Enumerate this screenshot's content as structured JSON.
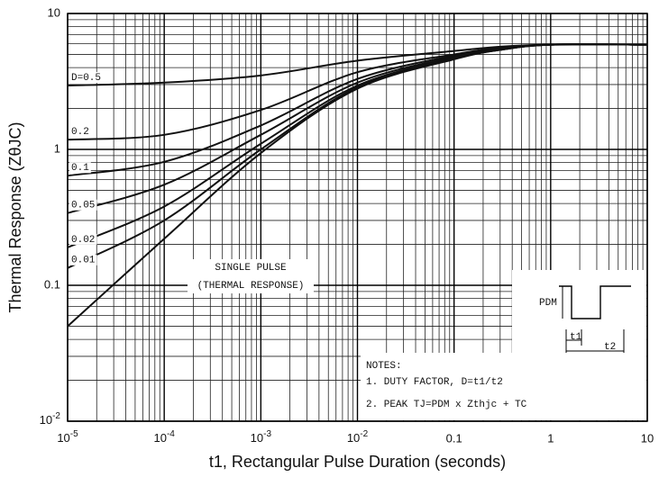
{
  "chart_data": {
    "type": "line",
    "xlabel": "t1, Rectangular Pulse Duration (seconds)",
    "ylabel": "Thermal Response (ZθJC)",
    "x": [
      1e-05,
      0.0001,
      0.001,
      0.01,
      0.1,
      0.3,
      1,
      10
    ],
    "series": [
      {
        "name": "D=0.5",
        "color": "#111111",
        "values": [
          2.95,
          3.1,
          3.5,
          4.5,
          5.3,
          5.7,
          5.9,
          5.9
        ]
      },
      {
        "name": "0.2",
        "color": "#111111",
        "values": [
          1.18,
          1.28,
          1.95,
          3.7,
          5.0,
          5.6,
          5.9,
          5.9
        ]
      },
      {
        "name": "0.1",
        "color": "#111111",
        "values": [
          0.64,
          0.81,
          1.5,
          3.3,
          4.9,
          5.5,
          5.9,
          5.9
        ]
      },
      {
        "name": "0.05",
        "color": "#111111",
        "values": [
          0.34,
          0.55,
          1.28,
          3.1,
          4.8,
          5.5,
          5.9,
          5.9
        ]
      },
      {
        "name": "0.02",
        "color": "#111111",
        "values": [
          0.19,
          0.38,
          1.1,
          2.95,
          4.7,
          5.4,
          5.9,
          5.9
        ]
      },
      {
        "name": "0.01",
        "color": "#111111",
        "values": [
          0.134,
          0.3,
          1.0,
          2.87,
          4.65,
          5.4,
          5.9,
          5.9
        ]
      },
      {
        "name": "SINGLE PULSE",
        "color": "#111111",
        "values": [
          0.05,
          0.22,
          0.94,
          2.8,
          4.6,
          5.4,
          5.9,
          5.9
        ]
      }
    ],
    "annotations": {
      "single_pulse_note": "(THERMAL RESPONSE)",
      "notes_title": "NOTES:",
      "note1": "1. DUTY FACTOR, D=t1/t2",
      "note2": "2. PEAK TJ=PDM x Zthjc + TC",
      "pdm": "PDM",
      "t1": "t1",
      "t2": "t2"
    },
    "xscale": "log",
    "yscale": "log",
    "xlim": [
      1e-05,
      10
    ],
    "ylim": [
      0.01,
      10
    ],
    "xticks": [
      {
        "value": 1e-05,
        "label": "10-5"
      },
      {
        "value": 0.0001,
        "label": "10-4"
      },
      {
        "value": 0.001,
        "label": "10-3"
      },
      {
        "value": 0.01,
        "label": "10-2"
      },
      0.1,
      1,
      10
    ],
    "yticks": [
      {
        "value": 0.01,
        "label": "10-2"
      },
      0.1,
      1,
      10
    ],
    "grid": true
  }
}
